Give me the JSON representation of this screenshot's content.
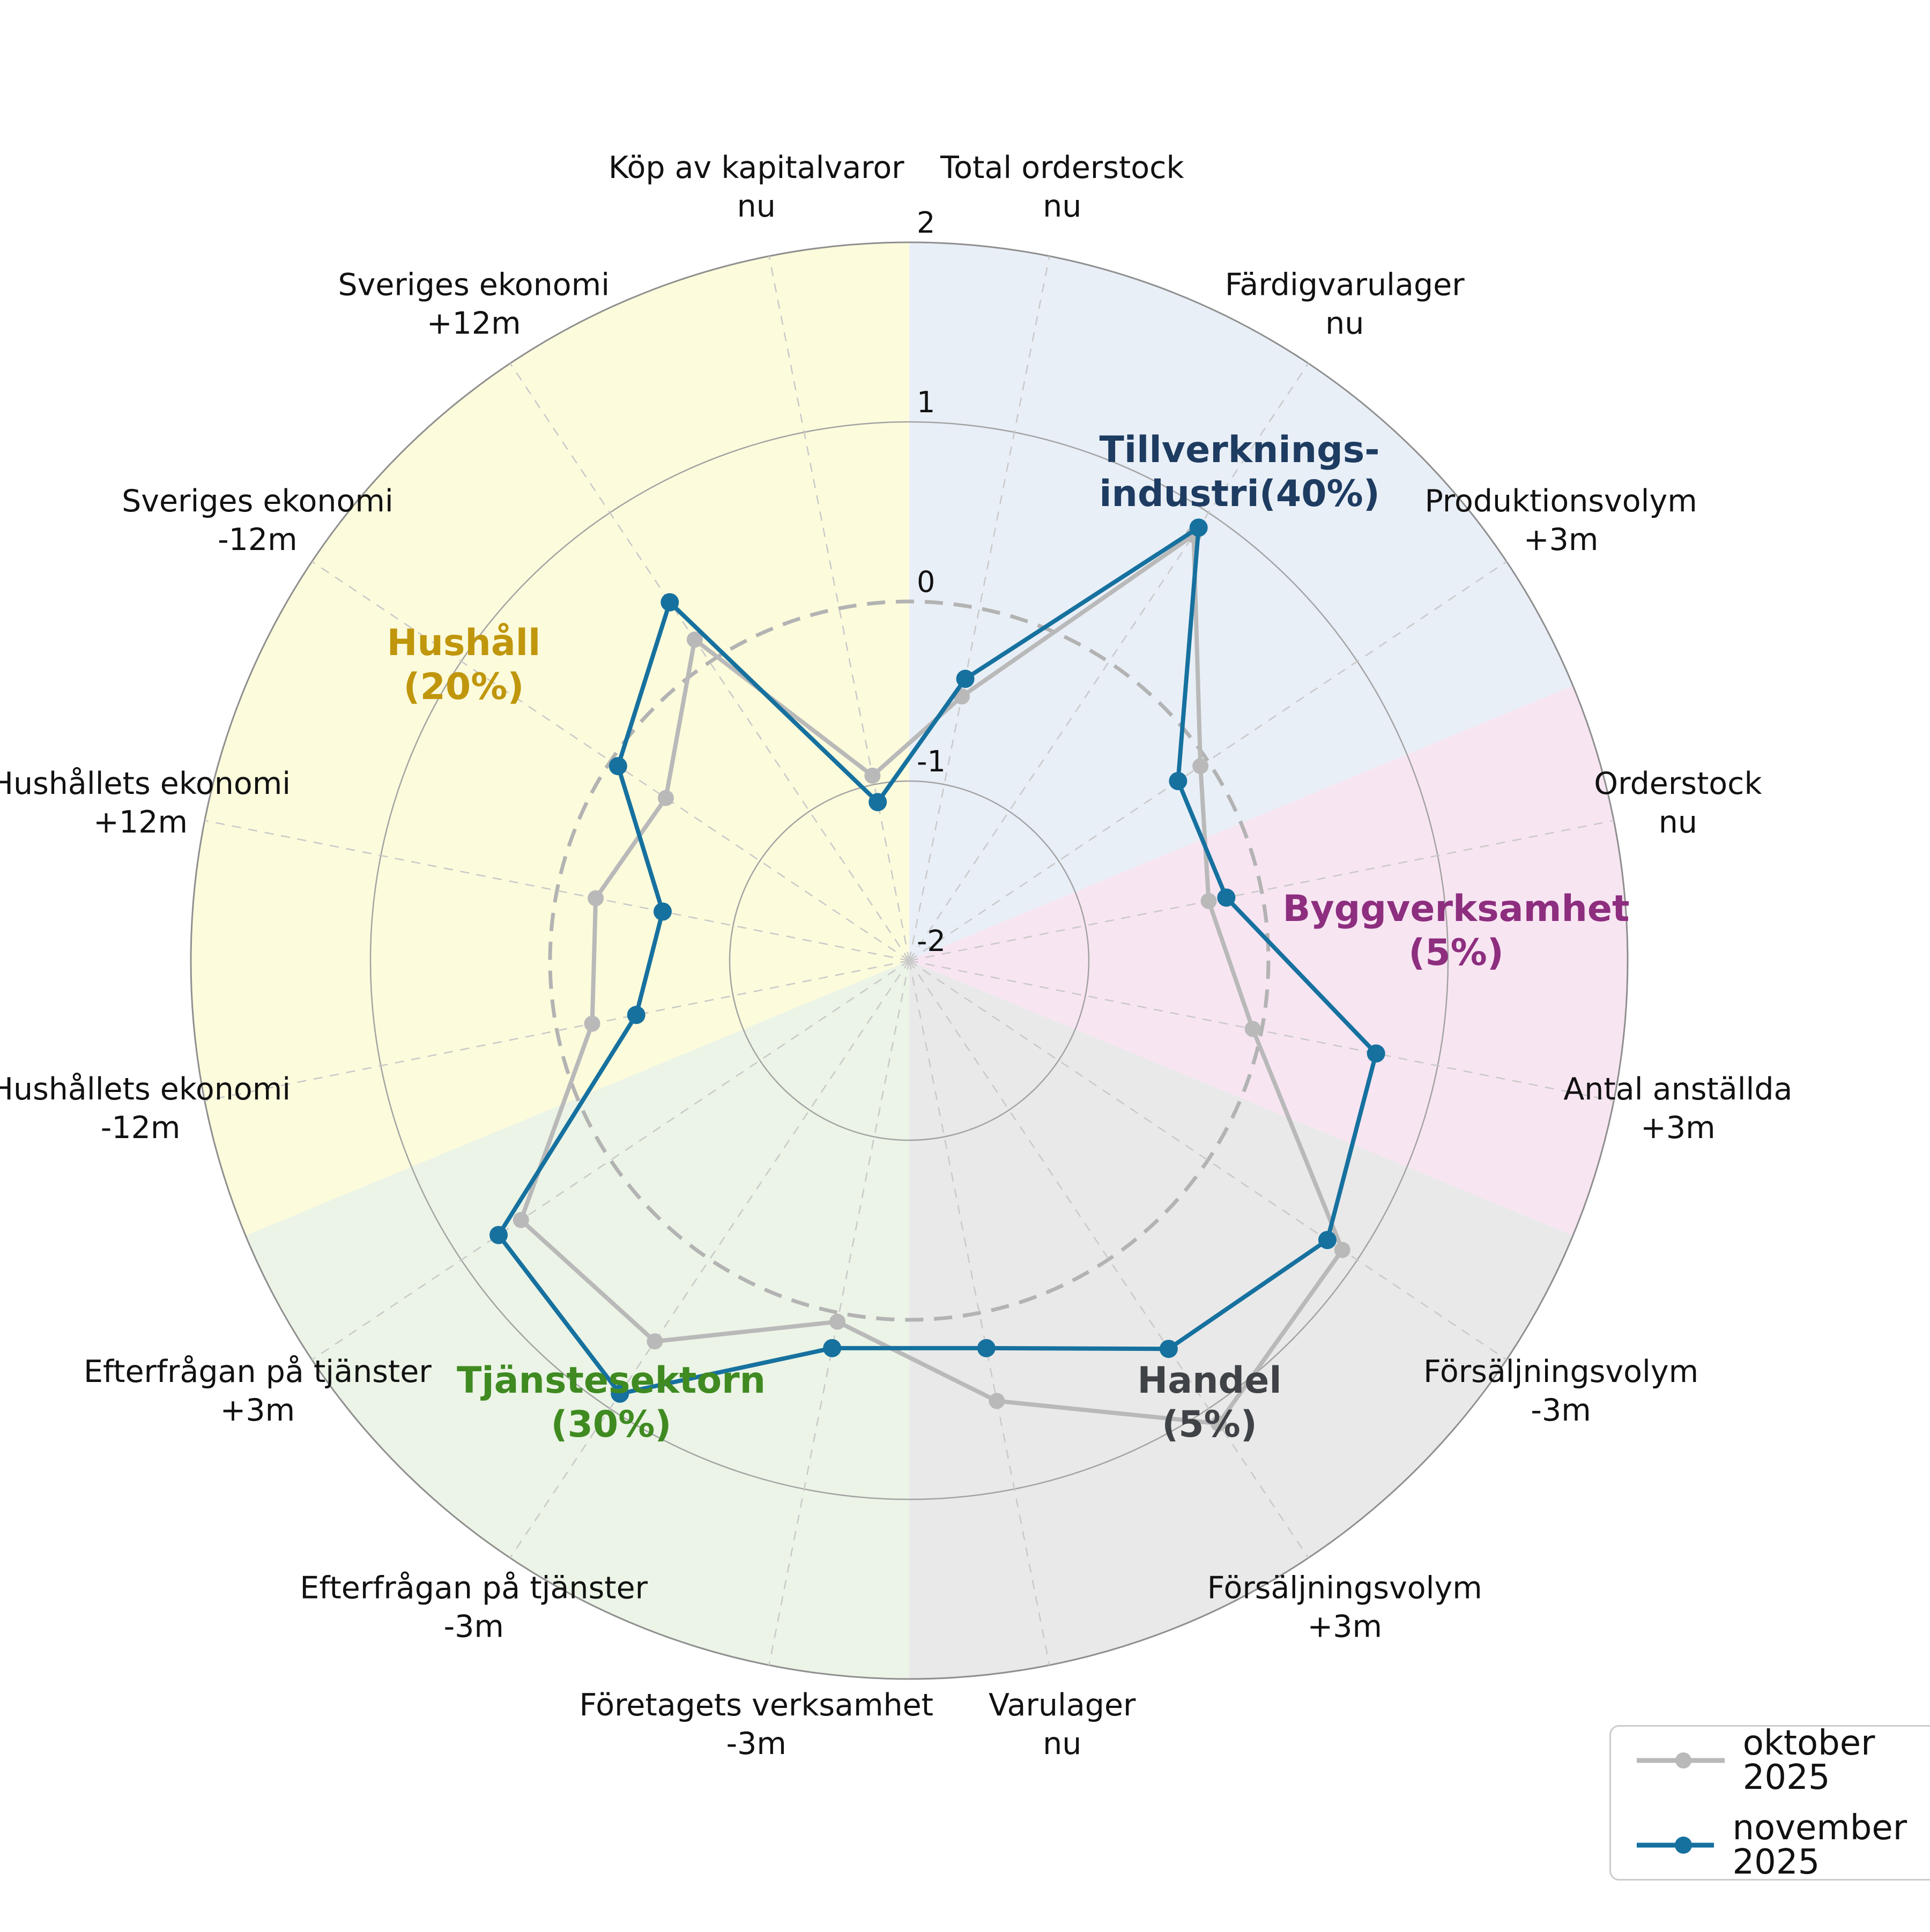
{
  "chart_data": {
    "type": "radar",
    "title": "",
    "radial_axis": {
      "min": -2,
      "max": 2,
      "ticks": [
        2,
        1,
        0,
        -1,
        -2
      ],
      "zero_ring_style": "bold-dashed"
    },
    "grid": {
      "rings": true,
      "spokes_dashed": true
    },
    "axes": [
      {
        "label": "Total orderstock",
        "sublabel": "nu",
        "sector": "Tillverkningsindustri"
      },
      {
        "label": "Färdigvarulager",
        "sublabel": "nu",
        "sector": "Tillverkningsindustri"
      },
      {
        "label": "Produktionsvolym",
        "sublabel": "+3m",
        "sector": "Tillverkningsindustri"
      },
      {
        "label": "Orderstock",
        "sublabel": "nu",
        "sector": "Byggverksamhet"
      },
      {
        "label": "Antal anställda",
        "sublabel": "+3m",
        "sector": "Byggverksamhet"
      },
      {
        "label": "Försäljningsvolym",
        "sublabel": "-3m",
        "sector": "Handel"
      },
      {
        "label": "Försäljningsvolym",
        "sublabel": "+3m",
        "sector": "Handel"
      },
      {
        "label": "Varulager",
        "sublabel": "nu",
        "sector": "Handel"
      },
      {
        "label": "Företagets verksamhet",
        "sublabel": "-3m",
        "sector": "Tjänstesektorn"
      },
      {
        "label": "Efterfrågan på tjänster",
        "sublabel": "-3m",
        "sector": "Tjänstesektorn"
      },
      {
        "label": "Efterfrågan på tjänster",
        "sublabel": "+3m",
        "sector": "Tjänstesektorn"
      },
      {
        "label": "Hushållets ekonomi",
        "sublabel": "-12m",
        "sector": "Hushåll"
      },
      {
        "label": "Hushållets ekonomi",
        "sublabel": "+12m",
        "sector": "Hushåll"
      },
      {
        "label": "Sveriges ekonomi",
        "sublabel": "-12m",
        "sector": "Hushåll"
      },
      {
        "label": "Sveriges ekonomi",
        "sublabel": "+12m",
        "sector": "Hushåll"
      },
      {
        "label": "Köp av kapitalvaror",
        "sublabel": "nu",
        "sector": "Hushåll"
      }
    ],
    "series": [
      {
        "name": "oktober 2025",
        "color": "#b9b9b9",
        "values": [
          -0.5,
          0.85,
          -0.05,
          -0.3,
          -0.05,
          0.9,
          1.1,
          0.5,
          0.05,
          0.55,
          0.6,
          -0.2,
          -0.22,
          -0.37,
          0.15,
          -0.95
        ]
      },
      {
        "name": "november 2025",
        "color": "#16719f",
        "values": [
          -0.4,
          0.9,
          -0.2,
          -0.2,
          0.65,
          0.8,
          0.6,
          0.2,
          0.2,
          0.9,
          0.75,
          -0.45,
          -0.6,
          -0.05,
          0.4,
          -1.1
        ]
      }
    ],
    "sectors": [
      {
        "line1": "Tillverknings-",
        "line2": "industri(40%)",
        "weight_pct": 40,
        "fill": "#e9eff7",
        "label_color": "#1e3c61",
        "span_deg": [
          0,
          67.5
        ]
      },
      {
        "line1": "Byggverksamhet",
        "line2": "(5%)",
        "weight_pct": 5,
        "fill": "#f8e5f2",
        "label_color": "#8d2e7f",
        "span_deg": [
          67.5,
          112.5
        ]
      },
      {
        "line1": "Handel",
        "line2": "(5%)",
        "weight_pct": 5,
        "fill": "#e9e9e9",
        "label_color": "#3f4246",
        "span_deg": [
          112.5,
          180
        ]
      },
      {
        "line1": "Tjänstesektorn",
        "line2": "(30%)",
        "weight_pct": 30,
        "fill": "#ebf4e6",
        "label_color": "#3f8a21",
        "span_deg": [
          180,
          247.5
        ]
      },
      {
        "line1": "Hushåll",
        "line2": "(20%)",
        "weight_pct": 20,
        "fill": "#fcfbdc",
        "label_color": "#c0960c",
        "span_deg": [
          247.5,
          360
        ]
      }
    ],
    "legend": {
      "position": "bottom-right",
      "entries": [
        "oktober 2025",
        "november 2025"
      ]
    }
  }
}
